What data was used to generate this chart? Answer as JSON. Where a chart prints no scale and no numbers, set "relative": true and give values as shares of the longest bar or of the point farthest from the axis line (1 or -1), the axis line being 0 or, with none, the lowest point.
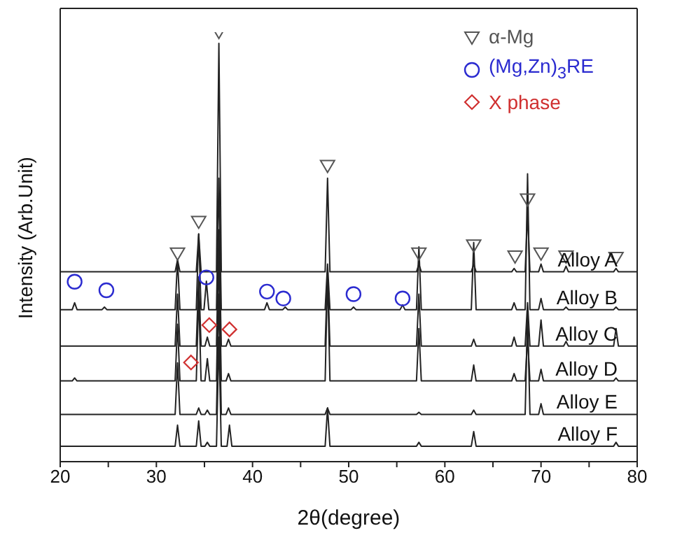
{
  "chart_data": {
    "type": "line",
    "xlabel": "2θ(degree)",
    "ylabel": "Intensity (Arb.Unit)",
    "relative": true,
    "xlim": [
      20,
      80
    ],
    "xticks": [
      20,
      {
        "value": 25,
        "label": null
      },
      30,
      {
        "value": 35,
        "label": null
      },
      40,
      {
        "value": 45,
        "label": null
      },
      50,
      {
        "value": 55,
        "label": null
      },
      60,
      {
        "value": 65,
        "label": null
      },
      70,
      {
        "value": 75,
        "label": null
      },
      80
    ],
    "legend": "top right",
    "series": [
      {
        "name": "Alloy A",
        "color": "#222222",
        "marker": "none",
        "x": [
          20,
          31.95,
          32.2,
          32.45,
          34.15,
          34.4,
          34.65,
          36.25,
          36.5,
          36.75,
          47.55,
          47.8,
          48.05,
          57.05,
          57.3,
          57.55,
          62.75,
          63,
          63.25,
          66.95,
          67.2,
          67.45,
          68.35,
          68.6,
          68.85,
          69.75,
          70,
          70.25,
          72.35,
          72.6,
          72.85,
          77.55,
          77.8,
          78.05,
          80
        ],
        "values": [
          0.442,
          0.442,
          0.47,
          0.442,
          0.442,
          0.53,
          0.442,
          0.442,
          0.974,
          0.442,
          0.442,
          0.66,
          0.442,
          0.442,
          0.46,
          0.442,
          0.442,
          0.46,
          0.442,
          0.442,
          0.45,
          0.442,
          0.442,
          0.58,
          0.442,
          0.442,
          0.46,
          0.442,
          0.442,
          0.455,
          0.442,
          0.442,
          0.45,
          0.442,
          0.442
        ]
      },
      {
        "name": "Alloy B",
        "color": "#222222",
        "marker": "none",
        "x": [
          20,
          21.25,
          21.5,
          21.75,
          24.35,
          24.6,
          24.85,
          31.95,
          32.2,
          32.45,
          34.15,
          34.4,
          34.65,
          34.95,
          35.2,
          35.45,
          36.25,
          36.5,
          36.75,
          41.25,
          41.5,
          41.75,
          43.15,
          43.4,
          43.65,
          47.55,
          47.8,
          48.05,
          50.25,
          50.5,
          50.75,
          55.35,
          55.6,
          55.85,
          57.05,
          57.3,
          57.55,
          62.75,
          63,
          63.25,
          66.95,
          67.2,
          67.45,
          68.35,
          68.6,
          68.85,
          69.75,
          70,
          70.25,
          72.35,
          72.6,
          72.85,
          77.55,
          77.8,
          78.05,
          80
        ],
        "values": [
          0.354,
          0.354,
          0.37,
          0.354,
          0.354,
          0.36,
          0.354,
          0.354,
          0.47,
          0.354,
          0.354,
          0.53,
          0.354,
          0.354,
          0.42,
          0.354,
          0.354,
          0.66,
          0.354,
          0.354,
          0.37,
          0.354,
          0.354,
          0.36,
          0.354,
          0.354,
          0.46,
          0.354,
          0.354,
          0.36,
          0.354,
          0.354,
          0.365,
          0.354,
          0.354,
          0.5,
          0.354,
          0.354,
          0.51,
          0.354,
          0.354,
          0.37,
          0.354,
          0.354,
          0.67,
          0.354,
          0.354,
          0.38,
          0.354,
          0.354,
          0.36,
          0.354,
          0.354,
          0.36,
          0.354,
          0.354
        ]
      },
      {
        "name": "Alloy C",
        "color": "#222222",
        "marker": "none",
        "x": [
          20,
          31.95,
          32.2,
          32.45,
          34.15,
          34.4,
          34.65,
          35.05,
          35.3,
          35.55,
          36.25,
          36.5,
          36.75,
          37.25,
          37.5,
          37.75,
          47.55,
          47.8,
          48.05,
          57.05,
          57.3,
          57.55,
          62.75,
          63,
          63.25,
          66.95,
          67.2,
          67.45,
          68.35,
          68.6,
          68.85,
          69.75,
          70,
          70.25,
          72.35,
          72.6,
          72.85,
          77.55,
          77.8,
          78.05,
          80
        ],
        "values": [
          0.269,
          0.269,
          0.39,
          0.269,
          0.269,
          0.43,
          0.269,
          0.269,
          0.29,
          0.269,
          0.269,
          0.54,
          0.269,
          0.269,
          0.285,
          0.269,
          0.269,
          0.44,
          0.269,
          0.269,
          0.39,
          0.269,
          0.269,
          0.285,
          0.269,
          0.269,
          0.29,
          0.269,
          0.269,
          0.37,
          0.269,
          0.269,
          0.33,
          0.269,
          0.269,
          0.28,
          0.269,
          0.269,
          0.31,
          0.269,
          0.269
        ]
      },
      {
        "name": "Alloy D",
        "color": "#222222",
        "marker": "none",
        "x": [
          20,
          21.25,
          21.5,
          21.75,
          31.95,
          32.2,
          32.45,
          34.15,
          34.4,
          34.65,
          35.05,
          35.3,
          35.55,
          36.25,
          36.5,
          36.75,
          37.25,
          37.5,
          37.75,
          47.55,
          47.8,
          48.05,
          57.05,
          57.3,
          57.55,
          62.75,
          63,
          63.25,
          66.95,
          67.2,
          67.45,
          68.35,
          68.6,
          68.85,
          69.75,
          70,
          70.25,
          77.55,
          77.8,
          78.05,
          80
        ],
        "values": [
          0.188,
          0.188,
          0.195,
          0.188,
          0.188,
          0.32,
          0.188,
          0.188,
          0.39,
          0.188,
          0.188,
          0.24,
          0.188,
          0.188,
          0.49,
          0.188,
          0.188,
          0.205,
          0.188,
          0.188,
          0.44,
          0.188,
          0.188,
          0.31,
          0.188,
          0.188,
          0.225,
          0.188,
          0.188,
          0.205,
          0.188,
          0.188,
          0.29,
          0.188,
          0.188,
          0.215,
          0.188,
          0.188,
          0.195,
          0.188,
          0.188
        ]
      },
      {
        "name": "Alloy E",
        "color": "#222222",
        "marker": "none",
        "x": [
          20,
          31.95,
          32.2,
          32.45,
          34.15,
          34.4,
          34.65,
          35.05,
          35.3,
          35.55,
          36.25,
          36.5,
          36.75,
          37.25,
          37.5,
          37.75,
          47.55,
          47.8,
          48.05,
          57.05,
          57.3,
          57.55,
          62.75,
          63,
          63.25,
          68.35,
          68.6,
          68.85,
          69.75,
          70,
          70.25,
          80
        ],
        "values": [
          0.11,
          0.11,
          0.23,
          0.11,
          0.11,
          0.125,
          0.11,
          0.11,
          0.12,
          0.11,
          0.11,
          0.39,
          0.11,
          0.11,
          0.125,
          0.11,
          0.11,
          0.125,
          0.11,
          0.11,
          0.115,
          0.11,
          0.11,
          0.12,
          0.11,
          0.11,
          0.34,
          0.11,
          0.11,
          0.135,
          0.11,
          0.11
        ]
      },
      {
        "name": "Alloy F",
        "color": "#222222",
        "marker": "none",
        "x": [
          20,
          31.95,
          32.2,
          32.45,
          34.15,
          34.4,
          34.65,
          35.05,
          35.3,
          35.55,
          36.25,
          36.5,
          36.75,
          37.35,
          37.6,
          37.85,
          47.55,
          47.8,
          48.05,
          57.05,
          57.3,
          57.55,
          62.75,
          63,
          63.25,
          77.55,
          77.8,
          78.05,
          80
        ],
        "values": [
          0.036,
          0.036,
          0.085,
          0.036,
          0.036,
          0.095,
          0.036,
          0.036,
          0.045,
          0.036,
          0.036,
          0.29,
          0.036,
          0.036,
          0.085,
          0.036,
          0.036,
          0.125,
          0.036,
          0.036,
          0.045,
          0.036,
          0.036,
          0.07,
          0.036,
          0.036,
          0.045,
          0.036,
          0.036
        ]
      },
      {
        "name": "α-Mg",
        "type": "scatter",
        "color": "#555555",
        "marker": "triangle",
        "x": [
          32.2,
          34.4,
          36.5,
          47.8,
          57.3,
          63,
          67.3,
          68.6,
          70,
          72.6,
          77.8
        ],
        "values": [
          0.484,
          0.558,
          1,
          0.688,
          0.484,
          0.503,
          0.477,
          0.61,
          0.484,
          0.477,
          0.474
        ]
      },
      {
        "name": "(Mg,Zn)$_{3}$RE",
        "type": "scatter",
        "color": "#2b2bd0",
        "marker": "circle",
        "x": [
          21.5,
          24.8,
          35.2,
          41.5,
          43.2,
          50.5,
          55.6
        ],
        "values": [
          0.419,
          0.399,
          0.429,
          0.396,
          0.38,
          0.39,
          0.38
        ]
      },
      {
        "name": "X phase",
        "type": "scatter",
        "color": "#d03030",
        "marker": "diamond",
        "x": [
          35.5,
          37.6,
          33.6
        ],
        "values": [
          0.318,
          0.308,
          0.231
        ]
      }
    ]
  }
}
